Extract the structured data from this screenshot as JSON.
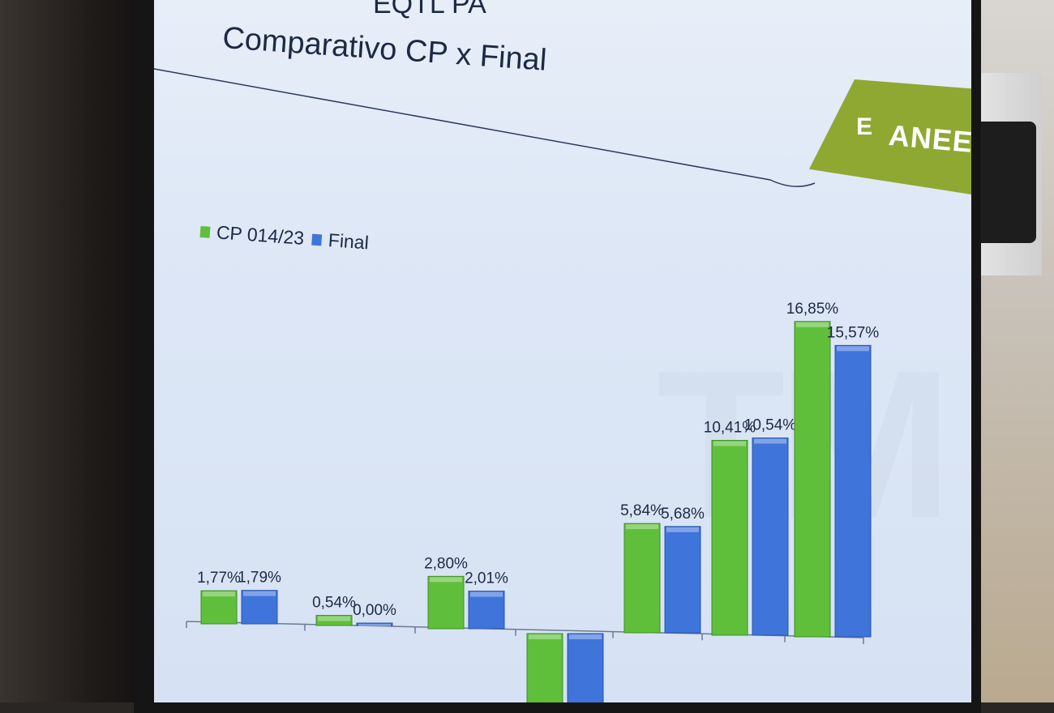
{
  "slide": {
    "title_partial": "EQTL PA",
    "title": "Comparativo CP x Final"
  },
  "logo": {
    "mark": "E",
    "text": "ANEEL",
    "color": "#8fa832"
  },
  "colors": {
    "cp": "#5fbf3a",
    "final": "#3f74db",
    "text": "#1c2a44"
  },
  "chart_data": {
    "type": "bar",
    "series": [
      {
        "name": "CP 014/23",
        "values": [
          1.77,
          0.54,
          2.8,
          null,
          5.84,
          10.41,
          16.85
        ],
        "labels": [
          "1,77%",
          "0,54%",
          "2,80%",
          "",
          "5,84%",
          "10,41%",
          "16,85%"
        ]
      },
      {
        "name": "Final",
        "values": [
          1.79,
          0.0,
          2.01,
          null,
          5.68,
          10.54,
          15.57
        ],
        "labels": [
          "1,79%",
          "0,00%",
          "2,01%",
          "",
          "5,68%",
          "10,54%",
          "15,57%"
        ]
      }
    ],
    "legend_position": "top-left",
    "grid": false
  }
}
